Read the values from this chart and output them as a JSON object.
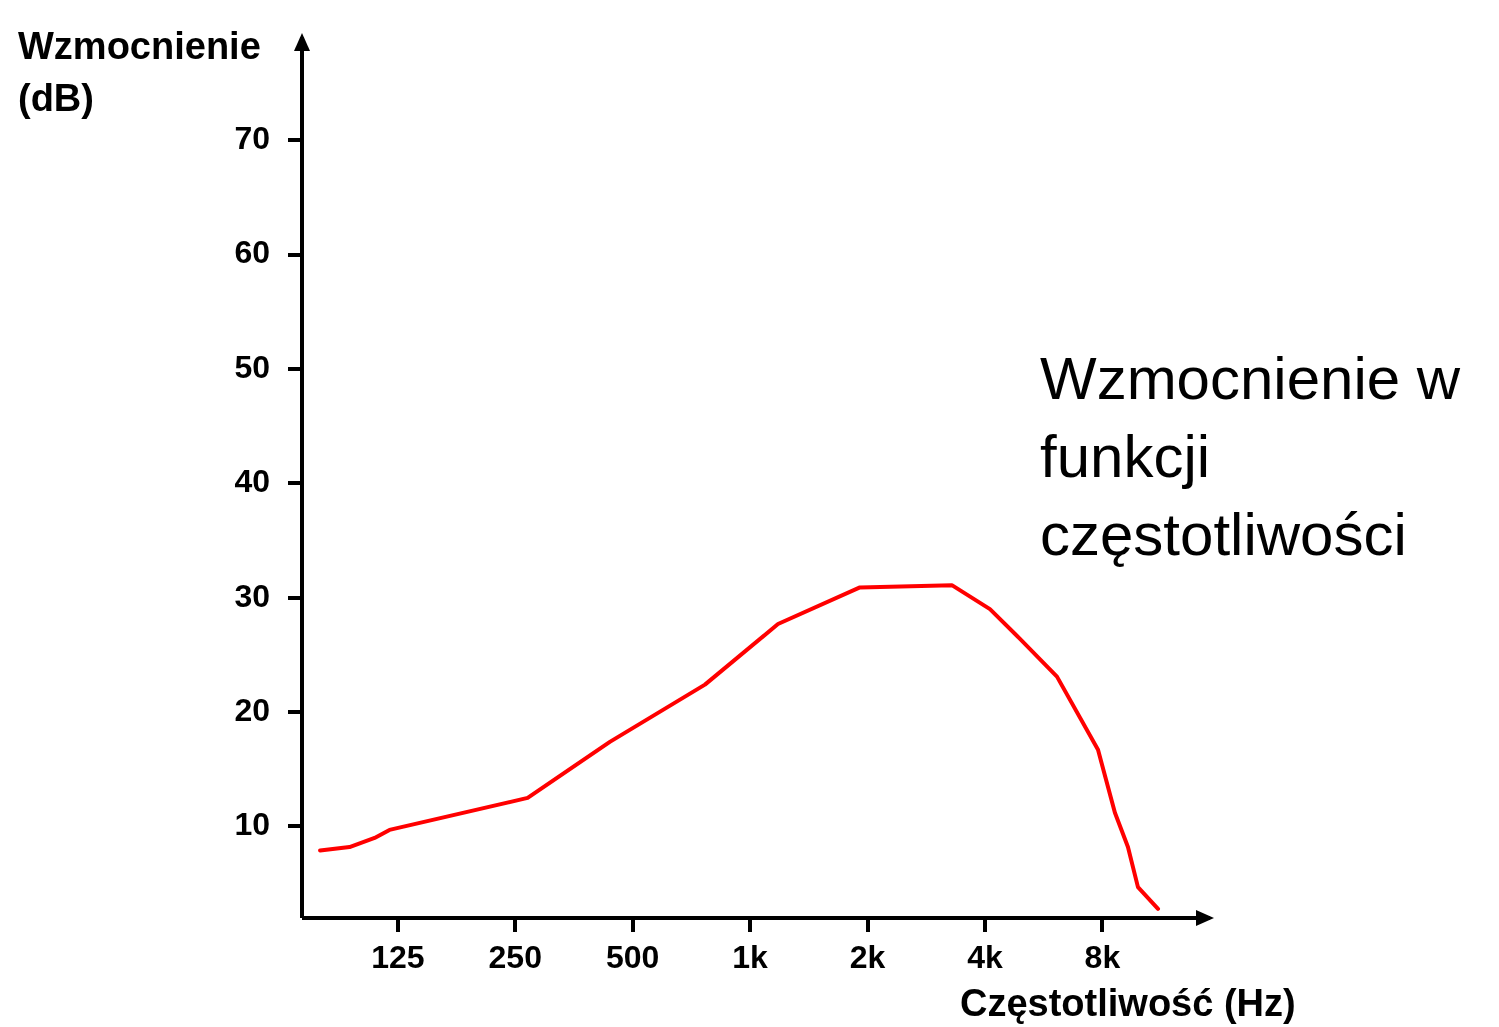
{
  "chart_data": {
    "type": "line",
    "xlabel": "Częstotliwość (Hz)",
    "ylabel": "Wzmocnienie (dB)",
    "annotations": [
      "Wzmocnienie w funkcji częstotliwości"
    ],
    "log": "x",
    "grid": false,
    "legend": false,
    "marker": "none",
    "line_style": "solid",
    "xlim": [
      71,
      15100
    ],
    "ylim": [
      2,
      79
    ],
    "xticks": [
      125,
      250,
      500,
      {
        "value": 1000,
        "label": "1k"
      },
      {
        "value": 2000,
        "label": "2k"
      },
      {
        "value": 4000,
        "label": "4k"
      },
      {
        "value": 8000,
        "label": "8k"
      }
    ],
    "yticks": [
      10,
      20,
      30,
      40,
      50,
      60,
      70
    ],
    "x": [
      79,
      94,
      109,
      119,
      269,
      437,
      766,
      1179,
      1912,
      3290,
      4120,
      4919,
      6119,
      7797,
      8615,
      9303,
      9870,
      11110
    ],
    "series": [
      {
        "color": "#ff0000",
        "values": [
          7.9,
          8.2,
          9.0,
          9.7,
          12.5,
          17.4,
          22.4,
          27.7,
          30.9,
          31.1,
          29.0,
          26.4,
          23.1,
          16.7,
          11.2,
          8.2,
          4.7,
          2.8
        ]
      }
    ]
  }
}
